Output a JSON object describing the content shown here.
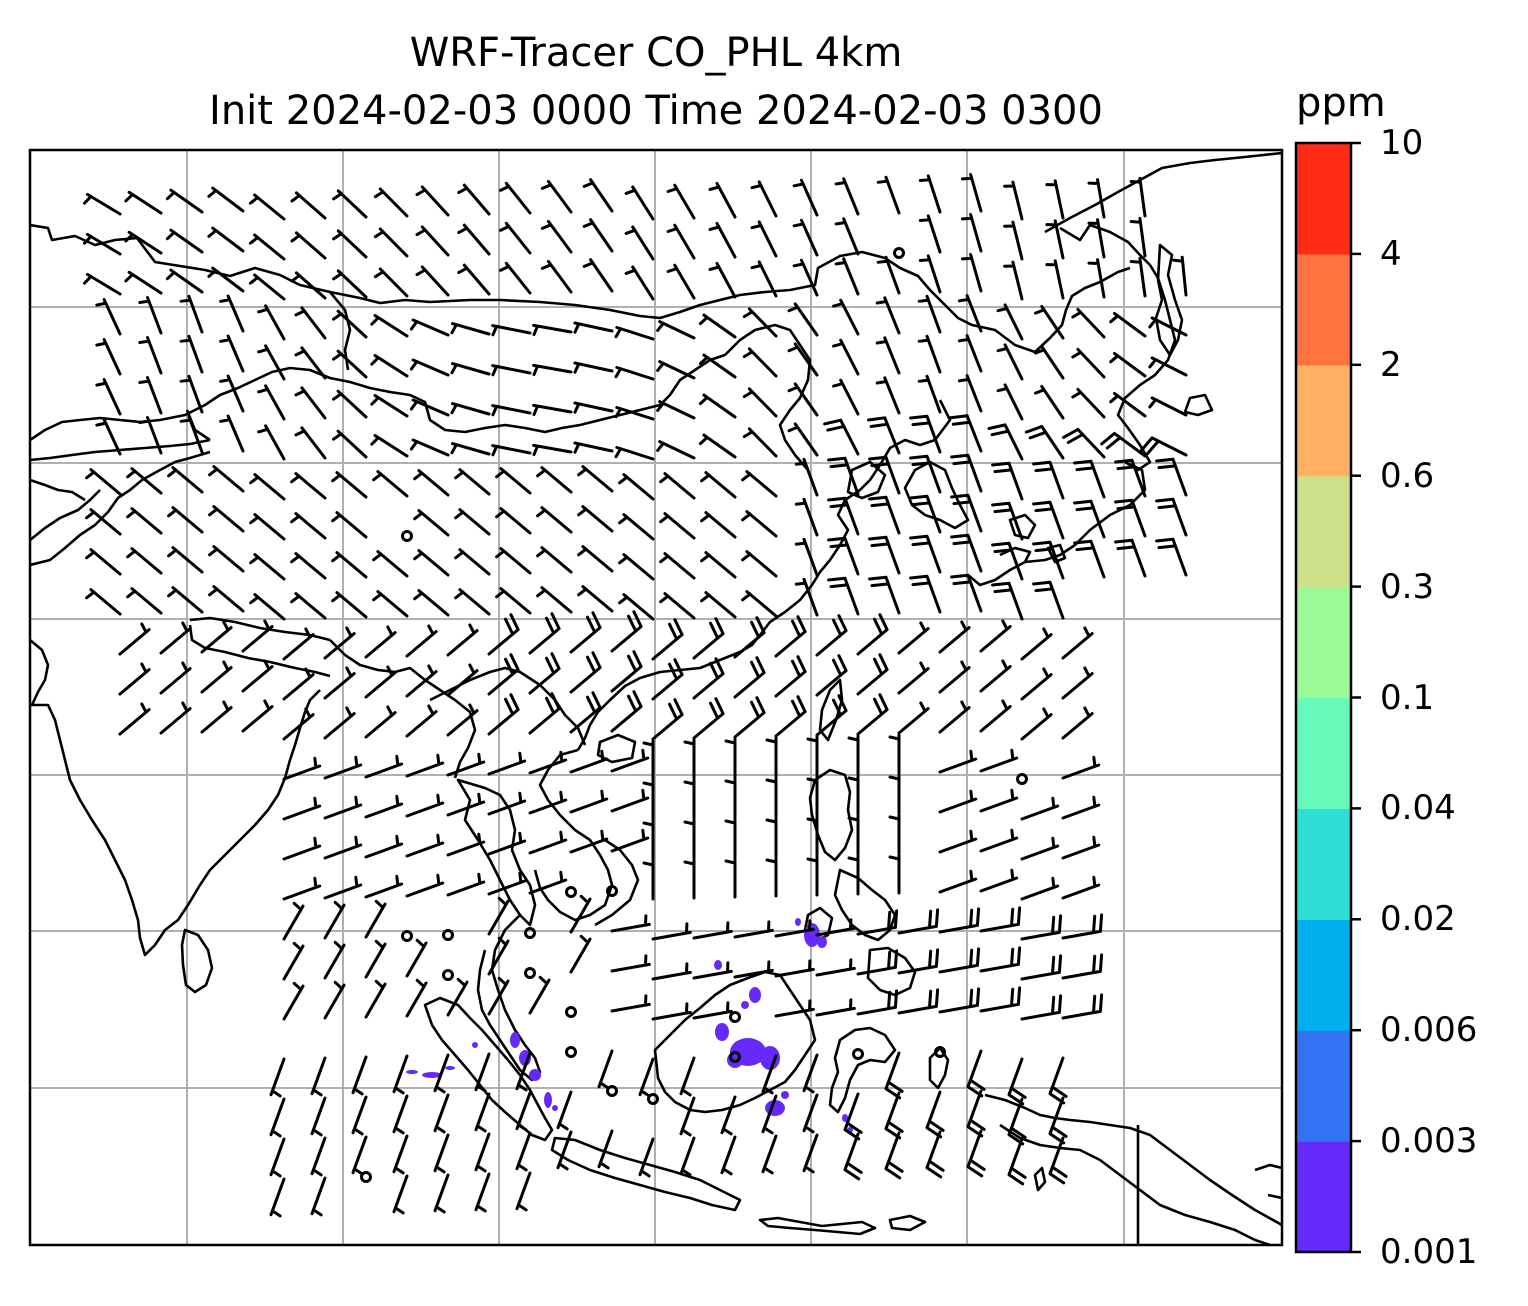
{
  "title": {
    "line1": "WRF-Tracer CO_PHL 4km",
    "line2": "Init 2024-02-03 0000 Time 2024-02-03 0300"
  },
  "colorbar": {
    "units": "ppm",
    "ticks": [
      "0.001",
      "0.003",
      "0.006",
      "0.02",
      "0.04",
      "0.1",
      "0.3",
      "0.6",
      "2",
      "4",
      "10"
    ],
    "colors": [
      "#6629fb",
      "#3374f4",
      "#00b0ec",
      "#2fdfd5",
      "#66f9b9",
      "#9afa96",
      "#cfe08b",
      "#ffb060",
      "#ff7341",
      "#ff2b14"
    ]
  },
  "map": {
    "frame_color": "#000000",
    "grid_color": "#b0b0b0",
    "coast_color": "#000000",
    "tracer_color": "#6629fb",
    "wind_barb_color": "#000000",
    "calm_marker": "circle-icon"
  }
}
